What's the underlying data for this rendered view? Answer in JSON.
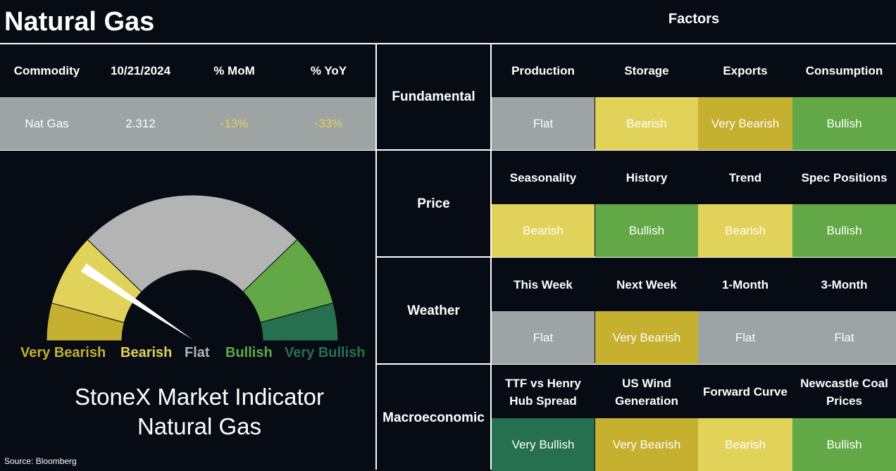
{
  "title": "Natural Gas",
  "factors_header": "Factors",
  "summary": {
    "headers": [
      "Commodity",
      "10/21/2024",
      "% MoM",
      "% YoY"
    ],
    "row": [
      "Nat Gas",
      "2.312",
      "-13%",
      "-33%"
    ]
  },
  "gauge": {
    "labels": [
      "Very Bearish",
      "Bearish",
      "Flat",
      "Bullish",
      "Very Bullish"
    ],
    "needle_level": "Bearish",
    "caption_line1": "StoneX Market Indicator",
    "caption_line2": "Natural Gas"
  },
  "colors": {
    "background": "#060b14",
    "flat": "#9ea3a4",
    "bearish": "#e1d35a",
    "very_bearish": "#c5b030",
    "bullish": "#62a846",
    "very_bullish": "#26704f",
    "mom_yoy_text": "#e1d35a"
  },
  "sections": [
    {
      "name": "Fundamental",
      "factors": [
        "Production",
        "Storage",
        "Exports",
        "Consumption"
      ],
      "values": [
        "Flat",
        "Bearish",
        "Very Bearish",
        "Bullish"
      ]
    },
    {
      "name": "Price",
      "factors": [
        "Seasonality",
        "History",
        "Trend",
        "Spec Positions"
      ],
      "values": [
        "Bearish",
        "Bullish",
        "Bearish",
        "Bullish"
      ]
    },
    {
      "name": "Weather",
      "factors": [
        "This Week",
        "Next Week",
        "1-Month",
        "3-Month"
      ],
      "values": [
        "Flat",
        "Very Bearish",
        "Flat",
        "Flat"
      ]
    },
    {
      "name": "Macroeconomic",
      "factors": [
        "TTF vs Henry Hub Spread",
        "US Wind Generation",
        "Forward Curve",
        "Newcastle Coal Prices"
      ],
      "values": [
        "Very Bullish",
        "Very Bearish",
        "Bearish",
        "Bullish"
      ]
    }
  ],
  "source": "Source: Bloomberg"
}
